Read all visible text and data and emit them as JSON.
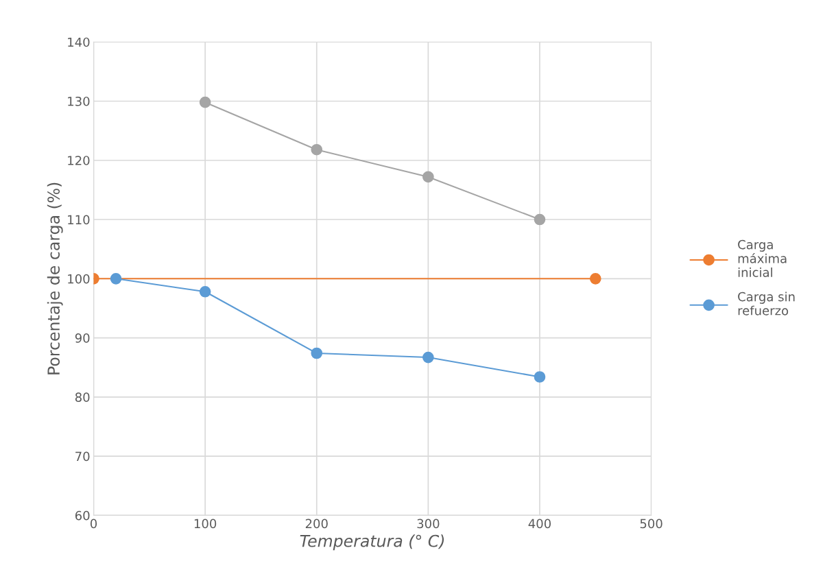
{
  "chart_data": {
    "type": "line",
    "xlabel": "Temperatura (° C)",
    "ylabel": "Porcentaje de carga (%)",
    "xlim": [
      0,
      500
    ],
    "xticks": [
      0,
      100,
      200,
      300,
      400,
      500
    ],
    "ylim": [
      60,
      140
    ],
    "yticks": [
      60,
      70,
      80,
      90,
      100,
      110,
      120,
      130,
      140
    ],
    "grid": true,
    "legend": "right",
    "marker": "circle",
    "line_style": "solid",
    "series": [
      {
        "name": "Carga máxima inicial",
        "color": "#ed7d31",
        "x": [
          0,
          450
        ],
        "values": [
          100,
          100
        ]
      },
      {
        "name": "Carga sin refuerzo",
        "color": "#5b9bd5",
        "x": [
          20,
          100,
          200,
          300,
          400
        ],
        "values": [
          100,
          97.8,
          87.4,
          86.7,
          83.4
        ]
      },
      {
        "color": "#a5a5a5",
        "x": [
          100,
          200,
          300,
          400
        ],
        "values": [
          129.8,
          121.8,
          117.2,
          110.0
        ]
      }
    ]
  }
}
